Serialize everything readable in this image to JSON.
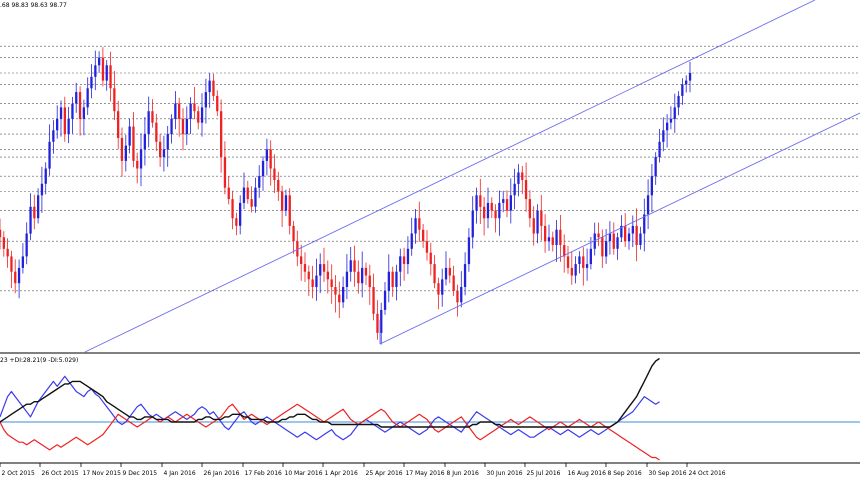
{
  "header": {
    "ohlc_text": ".68 98.83 98.63 98.77"
  },
  "indicator": {
    "label": "23 +DI:28.21(9 -DI:5.029)"
  },
  "colors": {
    "bull": "#2222dd",
    "bear": "#ee2222",
    "grid": "#555555",
    "channel": "#6d6df0",
    "adx": "#111111",
    "di_plus": "#3a3aee",
    "di_minus": "#ee2222",
    "level": "#3b8fd6"
  },
  "chart_data": [
    {
      "type": "candlestick",
      "title": "",
      "x_tick_labels": [
        "2 Oct 2015",
        "26 Oct 2015",
        "17 Nov 2015",
        "9 Dec 2015",
        "4 Jan 2016",
        "26 Jan 2016",
        "17 Feb 2016",
        "10 Mar 2016",
        "1 Apr 2016",
        "25 Apr 2016",
        "17 May 2016",
        "8 Jun 2016",
        "30 Jun 2016",
        "25 Jul 2016",
        "16 Aug 2016",
        "8 Sep 2016",
        "30 Sep 2016",
        "24 Oct 2016"
      ],
      "ylim": [
        91.5,
        100.5
      ],
      "grid": "horizontal dashed",
      "close": [
        94.5,
        94.2,
        94.0,
        93.6,
        93.3,
        93.7,
        94.0,
        94.6,
        95.3,
        95.0,
        95.6,
        95.9,
        96.3,
        97.0,
        97.3,
        97.6,
        97.9,
        97.2,
        97.6,
        98.0,
        98.3,
        97.6,
        97.9,
        98.4,
        98.7,
        99.0,
        99.2,
        98.6,
        99.0,
        98.4,
        97.8,
        97.1,
        96.5,
        96.9,
        97.4,
        96.5,
        96.3,
        96.8,
        97.2,
        97.8,
        97.5,
        97.0,
        96.6,
        96.8,
        97.2,
        97.6,
        98.0,
        97.6,
        97.2,
        97.6,
        98.0,
        97.8,
        97.5,
        97.9,
        98.3,
        98.6,
        98.2,
        97.8,
        96.6,
        95.8,
        95.5,
        95.0,
        94.8,
        95.4,
        95.8,
        95.5,
        95.3,
        95.8,
        96.1,
        96.5,
        96.8,
        96.3,
        96.0,
        95.7,
        95.2,
        95.6,
        94.8,
        94.4,
        94.0,
        93.8,
        93.6,
        93.4,
        93.2,
        93.5,
        93.8,
        93.6,
        93.4,
        93.2,
        93.0,
        92.8,
        93.2,
        93.6,
        93.9,
        93.6,
        93.3,
        93.7,
        93.5,
        93.2,
        92.5,
        92.0,
        92.6,
        93.1,
        93.6,
        93.2,
        93.6,
        94.0,
        93.8,
        94.2,
        94.6,
        95.0,
        94.7,
        94.4,
        94.1,
        93.8,
        93.3,
        93.0,
        93.4,
        93.7,
        93.5,
        93.1,
        92.8,
        93.2,
        93.8,
        94.5,
        95.2,
        95.6,
        95.3,
        95.0,
        95.4,
        95.2,
        95.0,
        95.4,
        95.5,
        95.2,
        95.6,
        95.9,
        96.2,
        96.0,
        95.5,
        95.0,
        94.6,
        95.2,
        94.8,
        94.4,
        94.5,
        94.3,
        94.7,
        94.3,
        94.0,
        93.7,
        93.5,
        93.8,
        94.0,
        93.7,
        93.8,
        94.2,
        94.6,
        94.5,
        94.0,
        94.4,
        94.6,
        94.2,
        94.5,
        94.8,
        94.4,
        94.6,
        94.8,
        94.3,
        94.6,
        95.1,
        95.6,
        96.1,
        96.6,
        97.0,
        97.3,
        97.5,
        97.6,
        97.9,
        98.2,
        98.5,
        98.6,
        98.8
      ]
    },
    {
      "type": "line",
      "title": "",
      "series": [
        {
          "name": "+DI",
          "values": [
            22,
            26,
            30,
            32,
            30,
            28,
            26,
            24,
            22,
            25,
            28,
            30,
            32,
            34,
            36,
            34,
            36,
            38,
            36,
            34,
            32,
            31,
            30,
            32,
            33,
            31,
            30,
            28,
            26,
            24,
            22,
            20,
            19,
            20,
            22,
            24,
            26,
            27,
            25,
            23,
            22,
            23,
            22,
            21,
            22,
            23,
            24,
            23,
            22,
            21,
            22,
            23,
            25,
            26,
            25,
            23,
            24,
            22,
            20,
            18,
            17,
            19,
            21,
            23,
            24,
            22,
            20,
            19,
            20,
            21,
            22,
            21,
            20,
            19,
            18,
            17,
            16,
            15,
            14,
            15,
            16,
            15,
            14,
            13,
            14,
            15,
            16,
            17,
            15,
            14,
            13,
            14,
            15,
            17,
            19,
            20,
            21,
            20,
            19,
            18,
            17,
            16,
            17,
            18,
            19,
            20,
            19,
            18,
            17,
            16,
            15,
            16,
            17,
            19,
            21,
            22,
            21,
            20,
            19,
            18,
            17,
            16,
            18,
            20,
            22,
            24,
            23,
            22,
            21,
            20,
            19,
            18,
            17,
            16,
            15,
            16,
            17,
            16,
            15,
            14,
            14,
            15,
            16,
            17,
            18,
            17,
            16,
            15,
            16,
            17,
            16,
            15,
            14,
            15,
            16,
            17,
            16,
            15,
            16,
            17,
            18,
            19,
            20,
            21,
            22,
            23,
            24,
            26,
            28,
            30,
            29,
            28,
            27,
            28
          ]
        },
        {
          "name": "-DI",
          "values": [
            20,
            17,
            15,
            14,
            13,
            12,
            12,
            11,
            12,
            13,
            12,
            11,
            10,
            9,
            10,
            11,
            10,
            11,
            12,
            13,
            14,
            13,
            12,
            11,
            12,
            13,
            14,
            15,
            17,
            19,
            21,
            23,
            22,
            21,
            20,
            19,
            18,
            19,
            20,
            21,
            22,
            21,
            20,
            21,
            22,
            21,
            20,
            21,
            22,
            23,
            22,
            21,
            20,
            19,
            18,
            19,
            20,
            21,
            22,
            24,
            26,
            27,
            25,
            23,
            21,
            22,
            23,
            22,
            21,
            20,
            19,
            20,
            21,
            22,
            23,
            24,
            25,
            26,
            27,
            26,
            25,
            24,
            23,
            22,
            21,
            20,
            21,
            22,
            23,
            24,
            25,
            23,
            21,
            20,
            19,
            20,
            21,
            22,
            23,
            24,
            25,
            24,
            22,
            20,
            19,
            18,
            19,
            20,
            21,
            22,
            23,
            22,
            21,
            19,
            17,
            16,
            17,
            18,
            19,
            20,
            21,
            22,
            20,
            18,
            16,
            14,
            13,
            14,
            15,
            16,
            17,
            18,
            19,
            20,
            21,
            20,
            19,
            20,
            21,
            22,
            21,
            20,
            19,
            18,
            17,
            18,
            19,
            20,
            19,
            18,
            19,
            20,
            21,
            20,
            19,
            18,
            19,
            20,
            19,
            18,
            17,
            16,
            15,
            14,
            13,
            12,
            11,
            10,
            9,
            8,
            7,
            6,
            6,
            5
          ]
        },
        {
          "name": "ADX",
          "values": [
            20,
            21,
            22,
            23,
            24,
            25,
            26,
            27,
            27,
            28,
            28,
            29,
            30,
            31,
            32,
            33,
            34,
            35,
            35,
            36,
            36,
            36,
            35,
            34,
            33,
            32,
            31,
            30,
            28,
            27,
            26,
            25,
            24,
            23,
            22,
            22,
            21,
            21,
            22,
            22,
            22,
            21,
            21,
            21,
            21,
            20,
            20,
            20,
            20,
            20,
            20,
            20,
            21,
            21,
            22,
            22,
            21,
            21,
            21,
            22,
            22,
            23,
            23,
            23,
            22,
            22,
            21,
            21,
            21,
            21,
            20,
            20,
            20,
            20,
            21,
            21,
            22,
            22,
            23,
            23,
            23,
            22,
            21,
            21,
            20,
            20,
            20,
            19,
            19,
            19,
            19,
            19,
            19,
            19,
            19,
            19,
            19,
            19,
            19,
            19,
            18,
            18,
            18,
            18,
            18,
            18,
            18,
            18,
            18,
            18,
            18,
            18,
            18,
            18,
            18,
            18,
            18,
            18,
            18,
            18,
            18,
            18,
            18,
            18,
            19,
            19,
            20,
            20,
            20,
            20,
            19,
            19,
            18,
            18,
            18,
            18,
            18,
            18,
            18,
            18,
            18,
            18,
            18,
            18,
            18,
            18,
            18,
            18,
            18,
            18,
            18,
            18,
            18,
            18,
            18,
            18,
            18,
            18,
            18,
            18,
            18,
            19,
            20,
            22,
            24,
            26,
            28,
            30,
            33,
            36,
            39,
            42,
            44,
            45
          ]
        }
      ],
      "reference_level": 20,
      "ylim": [
        5,
        46
      ]
    }
  ]
}
